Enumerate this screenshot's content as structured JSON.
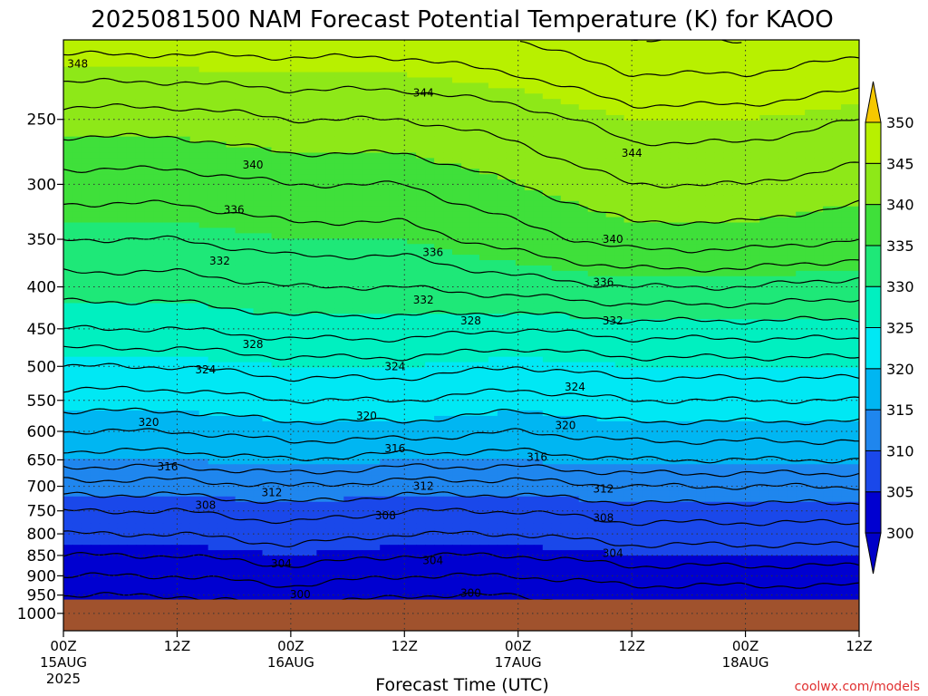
{
  "title": "2025081500 NAM Forecast Potential Temperature (K) for KAOO",
  "xlabel": "Forecast Time (UTC)",
  "watermark": "coolwx.com/models",
  "chart_data": {
    "type": "heatmap",
    "title": "2025081500 NAM Forecast Potential Temperature (K) for KAOO",
    "xlabel": "Forecast Time (UTC)",
    "ylabel": "",
    "y_scale": "log",
    "ylim": [
      1050,
      200
    ],
    "xlim": [
      0,
      84
    ],
    "y_ticks": [
      250,
      300,
      350,
      400,
      450,
      500,
      550,
      600,
      650,
      700,
      750,
      800,
      850,
      900,
      950,
      1000
    ],
    "x_ticks": [
      {
        "hour": 0,
        "label": "00Z",
        "sub1": "15AUG",
        "sub2": "2025"
      },
      {
        "hour": 12,
        "label": "12Z",
        "sub1": "",
        "sub2": ""
      },
      {
        "hour": 24,
        "label": "00Z",
        "sub1": "16AUG",
        "sub2": ""
      },
      {
        "hour": 36,
        "label": "12Z",
        "sub1": "",
        "sub2": ""
      },
      {
        "hour": 48,
        "label": "00Z",
        "sub1": "17AUG",
        "sub2": ""
      },
      {
        "hour": 60,
        "label": "12Z",
        "sub1": "",
        "sub2": ""
      },
      {
        "hour": 72,
        "label": "00Z",
        "sub1": "18AUG",
        "sub2": ""
      },
      {
        "hour": 84,
        "label": "12Z",
        "sub1": "",
        "sub2": ""
      }
    ],
    "grid": true,
    "surface_pressure": 962,
    "surface_color": "#a0522d",
    "colorbar": {
      "levels": [
        300,
        305,
        310,
        315,
        320,
        325,
        330,
        335,
        340,
        345,
        350
      ],
      "labels": [
        "300",
        "305",
        "310",
        "315",
        "320",
        "325",
        "330",
        "335",
        "340",
        "345",
        "350"
      ],
      "colors": [
        "#0000d0",
        "#1a48ea",
        "#1f86ee",
        "#00b6f2",
        "#00e8f4",
        "#00f0c0",
        "#1ee878",
        "#3fe03a",
        "#8ee818",
        "#b8f000",
        "#f6f600"
      ],
      "under_color": "#0000c8",
      "over_color": "#f6c800",
      "placement": "right"
    },
    "times": [
      0,
      12,
      24,
      36,
      48,
      60,
      72,
      84
    ],
    "pressures": [
      1000,
      950,
      900,
      850,
      800,
      750,
      700,
      650,
      600,
      550,
      500,
      450,
      400,
      350,
      300,
      250,
      200
    ],
    "potential_temperature": [
      [
        299,
        299,
        299,
        299,
        299,
        299,
        299,
        299
      ],
      [
        300,
        300,
        301,
        300,
        300,
        301,
        301,
        301
      ],
      [
        302,
        302,
        303,
        302,
        302,
        303,
        303,
        303
      ],
      [
        304,
        304,
        305,
        304,
        304,
        305,
        305,
        305
      ],
      [
        306,
        306,
        307,
        306,
        306,
        307,
        307,
        307
      ],
      [
        308,
        308,
        309,
        308,
        308,
        309,
        309,
        309
      ],
      [
        311,
        311,
        312,
        311,
        311,
        312,
        312,
        312
      ],
      [
        315,
        315,
        316,
        315,
        315,
        316,
        316,
        316
      ],
      [
        318,
        318,
        319,
        319,
        318,
        319,
        319,
        319
      ],
      [
        321,
        321,
        322,
        322,
        321,
        322,
        322,
        322
      ],
      [
        324,
        324,
        325,
        325,
        324,
        325,
        325,
        325
      ],
      [
        328,
        328,
        329,
        329,
        328,
        329,
        329,
        329
      ],
      [
        331,
        331,
        332,
        332,
        333,
        334,
        334,
        333
      ],
      [
        334,
        334,
        335,
        335,
        337,
        339,
        339,
        338
      ],
      [
        337,
        337,
        338,
        338,
        340,
        342,
        342,
        341
      ],
      [
        341,
        341,
        342,
        342,
        343,
        345,
        345,
        344
      ],
      [
        347,
        347,
        347,
        347,
        348,
        350,
        350,
        349
      ]
    ],
    "contour_labels": [
      {
        "value": "348",
        "hour": 1.5,
        "p": 214
      },
      {
        "value": "344",
        "hour": 38,
        "p": 232
      },
      {
        "value": "340",
        "hour": 20,
        "p": 284
      },
      {
        "value": "336",
        "hour": 18,
        "p": 322
      },
      {
        "value": "332",
        "hour": 16.5,
        "p": 372
      },
      {
        "value": "328",
        "hour": 20,
        "p": 470
      },
      {
        "value": "324",
        "hour": 15,
        "p": 505
      },
      {
        "value": "320",
        "hour": 9,
        "p": 585
      },
      {
        "value": "316",
        "hour": 11,
        "p": 663
      },
      {
        "value": "312",
        "hour": 22,
        "p": 712
      },
      {
        "value": "308",
        "hour": 15,
        "p": 738
      },
      {
        "value": "304",
        "hour": 23,
        "p": 870
      },
      {
        "value": "300",
        "hour": 25,
        "p": 948
      },
      {
        "value": "320",
        "hour": 32,
        "p": 575
      },
      {
        "value": "316",
        "hour": 35,
        "p": 630
      },
      {
        "value": "308",
        "hour": 34,
        "p": 760
      },
      {
        "value": "324",
        "hour": 35,
        "p": 500
      },
      {
        "value": "336",
        "hour": 39,
        "p": 363
      },
      {
        "value": "332",
        "hour": 38,
        "p": 415
      },
      {
        "value": "328",
        "hour": 43,
        "p": 440
      },
      {
        "value": "312",
        "hour": 38,
        "p": 700
      },
      {
        "value": "304",
        "hour": 39,
        "p": 862
      },
      {
        "value": "300",
        "hour": 43,
        "p": 945
      },
      {
        "value": "320",
        "hour": 53,
        "p": 590
      },
      {
        "value": "316",
        "hour": 50,
        "p": 645
      },
      {
        "value": "324",
        "hour": 54,
        "p": 530
      },
      {
        "value": "340",
        "hour": 58,
        "p": 350
      },
      {
        "value": "336",
        "hour": 57,
        "p": 395
      },
      {
        "value": "332",
        "hour": 58,
        "p": 440
      },
      {
        "value": "312",
        "hour": 57,
        "p": 705
      },
      {
        "value": "308",
        "hour": 57,
        "p": 765
      },
      {
        "value": "304",
        "hour": 58,
        "p": 845
      },
      {
        "value": "344",
        "hour": 60,
        "p": 275
      }
    ]
  }
}
